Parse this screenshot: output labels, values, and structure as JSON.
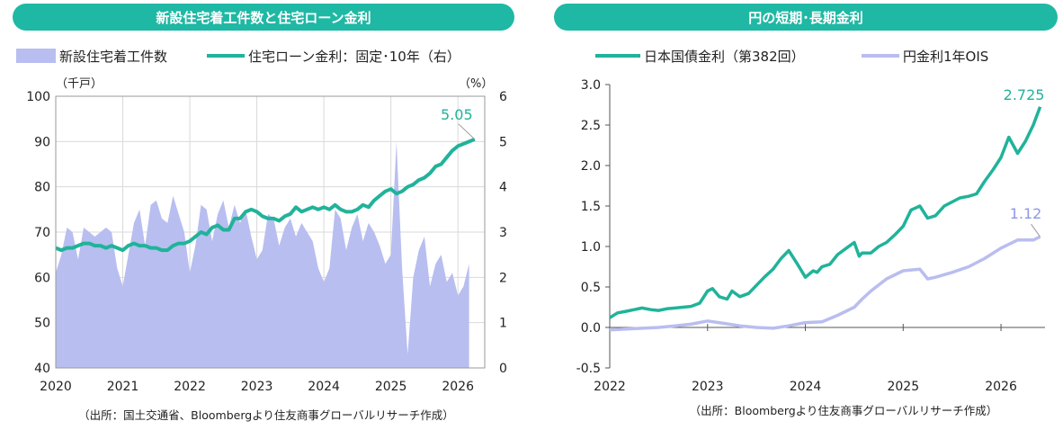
{
  "colors": {
    "teal": "#20b39a",
    "lavender": "#b8bef0",
    "lavender_line": "#b9bdef",
    "title_bg": "#1fb8a4"
  },
  "chart_data": [
    {
      "type": "area+line",
      "title": "新設住宅着工件数と住宅ローン金利",
      "legend": [
        "新設住宅着工件数",
        "住宅ローン金利：固定･10年（右）"
      ],
      "left_unit": "（千戸）",
      "right_unit": "（%）",
      "x_ticks": [
        "2020",
        "2021",
        "2022",
        "2023",
        "2024",
        "2025",
        "2026"
      ],
      "x_range": [
        2020,
        2026.4
      ],
      "left_ylim": [
        40,
        100
      ],
      "left_ticks": [
        "40",
        "50",
        "60",
        "70",
        "80",
        "90",
        "100"
      ],
      "right_ylim": [
        0,
        6
      ],
      "right_ticks": [
        "0",
        "1",
        "2",
        "3",
        "4",
        "5",
        "6"
      ],
      "grid": true,
      "series": [
        {
          "name": "新設住宅着工件数",
          "axis": "left",
          "x": [
            2020.0,
            2020.083,
            2020.167,
            2020.25,
            2020.333,
            2020.417,
            2020.5,
            2020.583,
            2020.667,
            2020.75,
            2020.833,
            2020.917,
            2021.0,
            2021.083,
            2021.167,
            2021.25,
            2021.333,
            2021.417,
            2021.5,
            2021.583,
            2021.667,
            2021.75,
            2021.833,
            2021.917,
            2022.0,
            2022.083,
            2022.167,
            2022.25,
            2022.333,
            2022.417,
            2022.5,
            2022.583,
            2022.667,
            2022.75,
            2022.833,
            2022.917,
            2023.0,
            2023.083,
            2023.167,
            2023.25,
            2023.333,
            2023.417,
            2023.5,
            2023.583,
            2023.667,
            2023.75,
            2023.833,
            2023.917,
            2024.0,
            2024.083,
            2024.167,
            2024.25,
            2024.333,
            2024.417,
            2024.5,
            2024.583,
            2024.667,
            2024.75,
            2024.833,
            2024.917,
            2025.0,
            2025.083,
            2025.167,
            2025.25,
            2025.333,
            2025.417,
            2025.5,
            2025.583,
            2025.667,
            2025.75,
            2025.833,
            2025.917,
            2026.0,
            2026.083,
            2026.167
          ],
          "values": [
            61,
            65,
            71,
            70,
            64,
            71,
            70,
            69,
            70,
            71,
            70,
            62,
            58,
            65,
            72,
            75,
            67,
            76,
            77,
            73,
            72,
            78,
            74,
            70,
            61,
            67,
            76,
            75,
            68,
            74,
            77,
            71,
            76,
            72,
            75,
            69,
            64,
            66,
            74,
            73,
            67,
            71,
            73,
            69,
            72,
            70,
            68,
            62,
            59,
            62,
            75,
            73,
            66,
            71,
            74,
            68,
            72,
            70,
            67,
            63,
            65,
            90,
            62,
            43,
            60,
            66,
            69,
            58,
            63,
            65,
            59,
            61,
            56,
            58,
            63
          ]
        },
        {
          "name": "住宅ローン金利：固定･10年（右）",
          "axis": "right",
          "x": [
            2020.0,
            2020.083,
            2020.167,
            2020.25,
            2020.333,
            2020.417,
            2020.5,
            2020.583,
            2020.667,
            2020.75,
            2020.833,
            2020.917,
            2021.0,
            2021.083,
            2021.167,
            2021.25,
            2021.333,
            2021.417,
            2021.5,
            2021.583,
            2021.667,
            2021.75,
            2021.833,
            2021.917,
            2022.0,
            2022.083,
            2022.167,
            2022.25,
            2022.333,
            2022.417,
            2022.5,
            2022.583,
            2022.667,
            2022.75,
            2022.833,
            2022.917,
            2023.0,
            2023.083,
            2023.167,
            2023.25,
            2023.333,
            2023.417,
            2023.5,
            2023.583,
            2023.667,
            2023.75,
            2023.833,
            2023.917,
            2024.0,
            2024.083,
            2024.167,
            2024.25,
            2024.333,
            2024.417,
            2024.5,
            2024.583,
            2024.667,
            2024.75,
            2024.833,
            2024.917,
            2025.0,
            2025.083,
            2025.167,
            2025.25,
            2025.333,
            2025.417,
            2025.5,
            2025.583,
            2025.667,
            2025.75,
            2025.833,
            2025.917,
            2026.0,
            2026.083,
            2026.167,
            2026.25
          ],
          "values": [
            2.65,
            2.6,
            2.65,
            2.65,
            2.7,
            2.75,
            2.75,
            2.7,
            2.7,
            2.65,
            2.7,
            2.65,
            2.6,
            2.7,
            2.75,
            2.7,
            2.7,
            2.65,
            2.65,
            2.6,
            2.6,
            2.7,
            2.75,
            2.75,
            2.8,
            2.9,
            3.0,
            2.95,
            3.1,
            3.15,
            3.05,
            3.05,
            3.3,
            3.3,
            3.45,
            3.5,
            3.45,
            3.35,
            3.3,
            3.3,
            3.25,
            3.35,
            3.4,
            3.55,
            3.45,
            3.5,
            3.55,
            3.5,
            3.55,
            3.5,
            3.6,
            3.5,
            3.45,
            3.45,
            3.5,
            3.6,
            3.55,
            3.7,
            3.8,
            3.9,
            3.95,
            3.85,
            3.9,
            4.0,
            4.05,
            4.15,
            4.2,
            4.3,
            4.45,
            4.5,
            4.65,
            4.8,
            4.9,
            4.95,
            5.0,
            5.05
          ]
        }
      ],
      "annotation": "5.05",
      "source": "（出所：国土交通省、Bloombergより住友商事グローバルリサーチ作成）"
    },
    {
      "type": "line",
      "title": "円の短期･長期金利",
      "legend": [
        "日本国債金利（第382回）",
        "円金利1年OIS"
      ],
      "x_ticks": [
        "2022",
        "2023",
        "2024",
        "2025",
        "2026"
      ],
      "x_range": [
        2022,
        2026.45
      ],
      "ylim": [
        -0.5,
        3.0
      ],
      "y_ticks": [
        "-0.5",
        "0.0",
        "0.5",
        "1.0",
        "1.5",
        "2.0",
        "2.5",
        "3.0"
      ],
      "grid": false,
      "series": [
        {
          "name": "日本国債金利（第382回）",
          "x": [
            2022.0,
            2022.08,
            2022.17,
            2022.25,
            2022.33,
            2022.42,
            2022.5,
            2022.58,
            2022.67,
            2022.75,
            2022.83,
            2022.92,
            2023.0,
            2023.05,
            2023.12,
            2023.2,
            2023.25,
            2023.33,
            2023.42,
            2023.5,
            2023.58,
            2023.67,
            2023.75,
            2023.83,
            2023.92,
            2024.0,
            2024.08,
            2024.12,
            2024.17,
            2024.25,
            2024.33,
            2024.42,
            2024.5,
            2024.55,
            2024.58,
            2024.67,
            2024.75,
            2024.83,
            2024.92,
            2025.0,
            2025.08,
            2025.17,
            2025.25,
            2025.33,
            2025.42,
            2025.5,
            2025.58,
            2025.67,
            2025.75,
            2025.83,
            2025.92,
            2026.0,
            2026.08,
            2026.17,
            2026.25,
            2026.33,
            2026.4
          ],
          "values": [
            0.12,
            0.18,
            0.2,
            0.22,
            0.24,
            0.22,
            0.21,
            0.23,
            0.24,
            0.25,
            0.26,
            0.3,
            0.45,
            0.48,
            0.38,
            0.35,
            0.45,
            0.38,
            0.42,
            0.52,
            0.62,
            0.72,
            0.85,
            0.95,
            0.78,
            0.62,
            0.7,
            0.68,
            0.75,
            0.78,
            0.9,
            0.98,
            1.05,
            0.88,
            0.92,
            0.92,
            1.0,
            1.05,
            1.15,
            1.25,
            1.45,
            1.5,
            1.35,
            1.38,
            1.5,
            1.55,
            1.6,
            1.62,
            1.65,
            1.8,
            1.95,
            2.1,
            2.35,
            2.15,
            2.3,
            2.5,
            2.725
          ]
        },
        {
          "name": "円金利1年OIS",
          "x": [
            2022.0,
            2022.17,
            2022.33,
            2022.5,
            2022.67,
            2022.83,
            2023.0,
            2023.17,
            2023.33,
            2023.5,
            2023.67,
            2023.83,
            2024.0,
            2024.17,
            2024.33,
            2024.5,
            2024.58,
            2024.67,
            2024.83,
            2025.0,
            2025.17,
            2025.25,
            2025.33,
            2025.5,
            2025.67,
            2025.83,
            2026.0,
            2026.17,
            2026.33,
            2026.4
          ],
          "values": [
            -0.03,
            -0.02,
            -0.01,
            0.0,
            0.02,
            0.04,
            0.08,
            0.05,
            0.02,
            0.0,
            -0.01,
            0.02,
            0.06,
            0.07,
            0.15,
            0.25,
            0.35,
            0.45,
            0.6,
            0.7,
            0.72,
            0.6,
            0.62,
            0.68,
            0.75,
            0.85,
            0.98,
            1.08,
            1.08,
            1.12
          ]
        }
      ],
      "annotation": "2.725",
      "annotation2": "1.12",
      "source": "（出所：Bloombergより住友商事グローバルリサーチ作成）"
    }
  ]
}
